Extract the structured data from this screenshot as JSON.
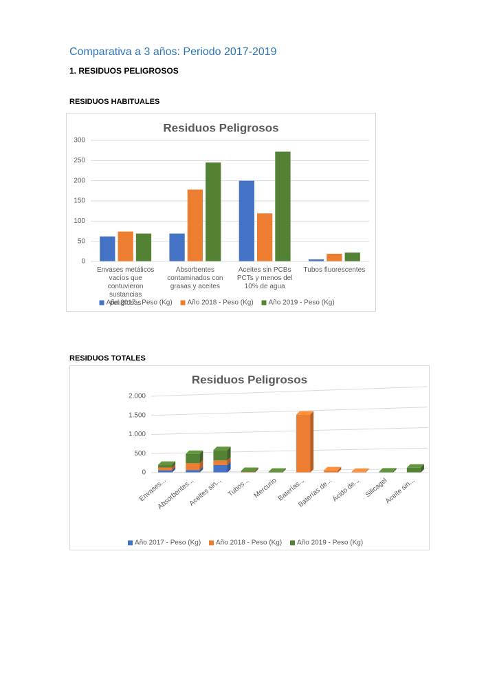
{
  "header": {
    "title": "Comparativa a 3 años: Periodo 2017-2019",
    "section": "1.  RESIDUOS PELIGROSOS",
    "subsection_1": "RESIDUOS HABITUALES",
    "subsection_2": "RESIDUOS TOTALES"
  },
  "chart_data": [
    {
      "type": "bar",
      "title": "Residuos Peligrosos",
      "categories": [
        "Envases  metálicos vacíos que contuvieron sustancias peligrosas",
        "Absorbentes contaminados con grasas y aceites",
        "Aceites sin PCBs PCTs y menos del 10% de agua",
        "Tubos fluorescentes"
      ],
      "series": [
        {
          "name": "Año 2017 - Peso (Kg)",
          "color": "#4472c4",
          "values": [
            62,
            69,
            200,
            5
          ]
        },
        {
          "name": "Año 2018 - Peso (Kg)",
          "color": "#ed7d31",
          "values": [
            74,
            178,
            119,
            19
          ]
        },
        {
          "name": "Año 2019 - Peso (Kg)",
          "color": "#548235",
          "values": [
            69,
            245,
            272,
            22
          ]
        }
      ],
      "ylim": [
        0,
        300
      ],
      "yticks": [
        0,
        50,
        100,
        150,
        200,
        250,
        300
      ],
      "grid": true,
      "legend": "bottom"
    },
    {
      "type": "bar",
      "stacked": true,
      "title": "Residuos Peligrosos",
      "categories": [
        "Envases...",
        "Absorbentes...",
        "Aceites sin...",
        "Tubos...",
        "Mercurio",
        "Baterías...",
        "Baterías de...",
        "Ácido de...",
        "Silicagel",
        "Aceite sin..."
      ],
      "series": [
        {
          "name": "Año 2017 - Peso (Kg)",
          "color": "#4472c4",
          "values": [
            62,
            69,
            200,
            5,
            3,
            0,
            0,
            0,
            0,
            0
          ]
        },
        {
          "name": "Año 2018 - Peso (Kg)",
          "color": "#ed7d31",
          "values": [
            74,
            178,
            119,
            19,
            3,
            1520,
            60,
            20,
            0,
            0
          ]
        },
        {
          "name": "Año 2019 - Peso (Kg)",
          "color": "#548235",
          "values": [
            69,
            245,
            272,
            22,
            3,
            0,
            0,
            0,
            30,
            130
          ]
        }
      ],
      "ylim": [
        0,
        2000
      ],
      "yticks": [
        0,
        500,
        {
          "value": 1000,
          "label": "1.000"
        },
        {
          "value": 1500,
          "label": "1.500"
        },
        {
          "value": 2000,
          "label": "2.000"
        }
      ],
      "grid": true,
      "legend": "bottom"
    }
  ]
}
